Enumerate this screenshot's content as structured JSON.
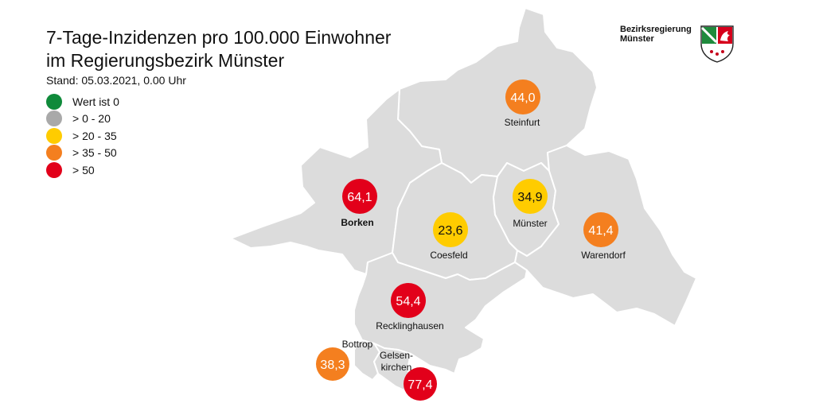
{
  "header": {
    "title_line1": "7-Tage-Inzidenzen pro 100.000 Einwohner",
    "title_line2": "im Regierungsbezirk Münster",
    "stand": "Stand: 05.03.2021, 0.00 Uhr"
  },
  "org": {
    "line1": "Bezirksregierung",
    "line2": "Münster",
    "crest_icon": "nrw-coat-of-arms-icon"
  },
  "legend": [
    {
      "label": "Wert ist 0",
      "color": "#0f8a3a"
    },
    {
      "label": "> 0 - 20",
      "color": "#a9a9a9"
    },
    {
      "label": "> 20 - 35",
      "color": "#ffcc00"
    },
    {
      "label": "> 35 - 50",
      "color": "#f47f1f"
    },
    {
      "label": "> 50",
      "color": "#e2001a"
    }
  ],
  "colors": {
    "region_fill": "#dcdcdc",
    "region_border": "#ffffff",
    "value_text_dark": "#111111",
    "value_text_light": "#ffffff"
  },
  "regions": [
    {
      "id": "steinfurt",
      "name": "Steinfurt",
      "value": "44,0",
      "color": "#f47f1f"
    },
    {
      "id": "borken",
      "name": "Borken",
      "value": "64,1",
      "color": "#e2001a"
    },
    {
      "id": "coesfeld",
      "name": "Coesfeld",
      "value": "23,6",
      "color": "#ffcc00"
    },
    {
      "id": "muenster",
      "name": "Münster",
      "value": "34,9",
      "color": "#ffcc00"
    },
    {
      "id": "warendorf",
      "name": "Warendorf",
      "value": "41,4",
      "color": "#f47f1f"
    },
    {
      "id": "recklinghausen",
      "name": "Recklinghausen",
      "value": "54,4",
      "color": "#e2001a"
    },
    {
      "id": "bottrop",
      "name": "Bottrop",
      "value": "38,3",
      "color": "#f47f1f"
    },
    {
      "id": "gelsenkirchen",
      "name_line1": "Gelsen-",
      "name_line2": "kirchen",
      "value": "77,4",
      "color": "#e2001a"
    }
  ]
}
